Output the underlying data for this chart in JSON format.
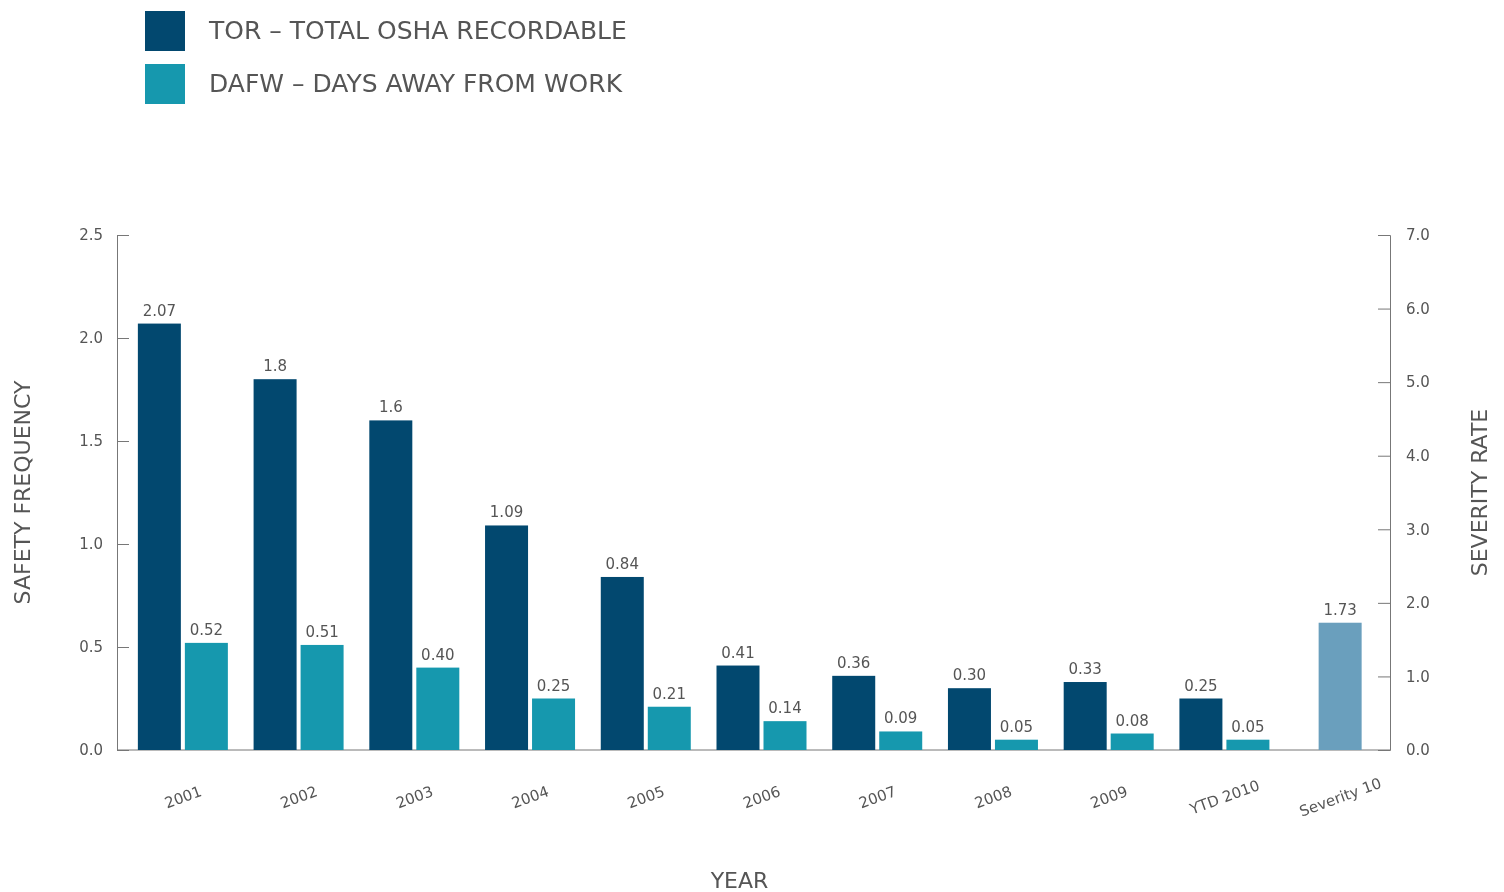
{
  "chart_data": {
    "type": "bar",
    "xlabel": "YEAR",
    "ylabel": "SAFETY FREQUENCY",
    "y2label": "SEVERITY RATE",
    "categories": [
      "2001",
      "2002",
      "2003",
      "2004",
      "2005",
      "2006",
      "2007",
      "2008",
      "2009",
      "YTD 2010",
      "Severity 10"
    ],
    "series": [
      {
        "name": "TOR – TOTAL OSHA RECORDABLE",
        "color": "#02486f",
        "values": [
          2.07,
          1.8,
          1.6,
          1.09,
          0.84,
          0.41,
          0.36,
          0.3,
          0.33,
          0.25,
          null
        ],
        "value_labels": [
          "2.07",
          "1.8",
          "1.6",
          "1.09",
          "0.84",
          "0.41",
          "0.36",
          "0.30",
          "0.33",
          "0.25",
          null
        ]
      },
      {
        "name": "DAFW – DAYS AWAY FROM WORK",
        "color": "#1698ae",
        "values": [
          0.52,
          0.51,
          0.4,
          0.25,
          0.21,
          0.14,
          0.09,
          0.05,
          0.08,
          0.05,
          null
        ],
        "value_labels": [
          "0.52",
          "0.51",
          "0.40",
          "0.25",
          "0.21",
          "0.14",
          "0.09",
          "0.05",
          "0.08",
          "0.05",
          null
        ]
      },
      {
        "color": "#6a9fbd",
        "axis": "y2",
        "values": [
          null,
          null,
          null,
          null,
          null,
          null,
          null,
          null,
          null,
          null,
          1.73
        ],
        "value_labels": [
          null,
          null,
          null,
          null,
          null,
          null,
          null,
          null,
          null,
          null,
          "1.73"
        ]
      }
    ],
    "ylim": [
      0,
      2.5
    ],
    "yticks": [
      {
        "value": 0,
        "label": "0.0"
      },
      0.5,
      {
        "value": 1,
        "label": "1.0"
      },
      1.5,
      {
        "value": 2,
        "label": "2.0"
      },
      2.5
    ],
    "y2lim": [
      0,
      7
    ],
    "y2ticks": [
      {
        "value": 0,
        "label": "0.0"
      },
      {
        "value": 1,
        "label": "1.0"
      },
      {
        "value": 2,
        "label": "2.0"
      },
      {
        "value": 3,
        "label": "3.0"
      },
      {
        "value": 4,
        "label": "4.0"
      },
      {
        "value": 5,
        "label": "5.0"
      },
      {
        "value": 6,
        "label": "6.0"
      },
      {
        "value": 7,
        "label": "7.0"
      }
    ],
    "grid": false,
    "legend": "top left"
  }
}
